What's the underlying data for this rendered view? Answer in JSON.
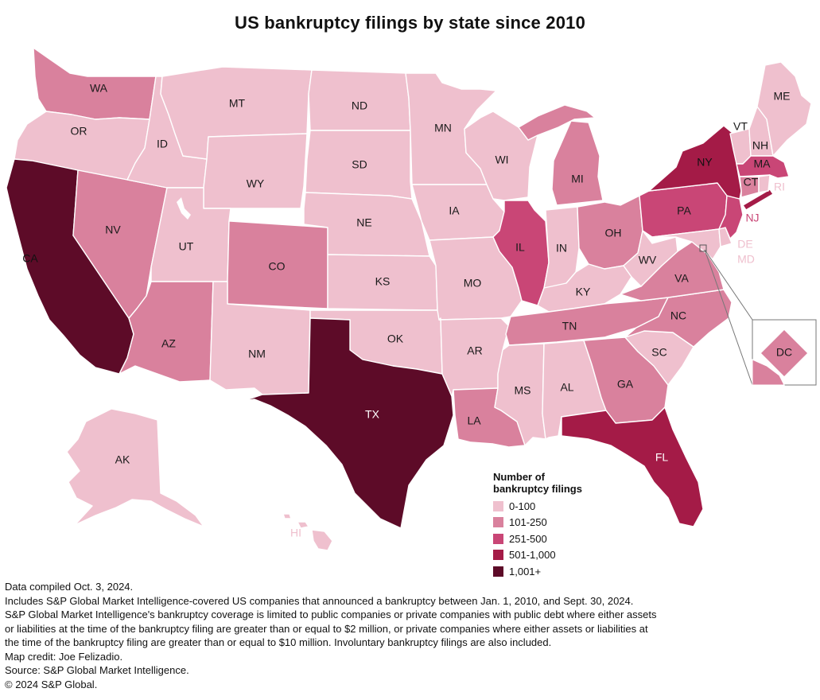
{
  "title": "US bankruptcy filings by state since 2010",
  "colors": {
    "bin1": "#efc0ce",
    "bin2": "#d9819d",
    "bin3": "#c94676",
    "bin4": "#a41b47",
    "bin5": "#5d0b28"
  },
  "legend": {
    "title_line1": "Number of",
    "title_line2": "bankruptcy filings",
    "items": [
      {
        "label": "0-100",
        "bin": "bin1"
      },
      {
        "label": "101-250",
        "bin": "bin2"
      },
      {
        "label": "251-500",
        "bin": "bin3"
      },
      {
        "label": "501-1,000",
        "bin": "bin4"
      },
      {
        "label": "1,001+",
        "bin": "bin5"
      }
    ]
  },
  "states": {
    "WA": {
      "label": "WA",
      "bin": "bin2"
    },
    "OR": {
      "label": "OR",
      "bin": "bin1"
    },
    "CA": {
      "label": "CA",
      "bin": "bin5"
    },
    "NV": {
      "label": "NV",
      "bin": "bin2"
    },
    "ID": {
      "label": "ID",
      "bin": "bin1"
    },
    "MT": {
      "label": "MT",
      "bin": "bin1"
    },
    "WY": {
      "label": "WY",
      "bin": "bin1"
    },
    "UT": {
      "label": "UT",
      "bin": "bin1"
    },
    "AZ": {
      "label": "AZ",
      "bin": "bin2"
    },
    "CO": {
      "label": "CO",
      "bin": "bin2"
    },
    "NM": {
      "label": "NM",
      "bin": "bin1"
    },
    "ND": {
      "label": "ND",
      "bin": "bin1"
    },
    "SD": {
      "label": "SD",
      "bin": "bin1"
    },
    "NE": {
      "label": "NE",
      "bin": "bin1"
    },
    "KS": {
      "label": "KS",
      "bin": "bin1"
    },
    "OK": {
      "label": "OK",
      "bin": "bin1"
    },
    "TX": {
      "label": "TX",
      "bin": "bin5"
    },
    "MN": {
      "label": "MN",
      "bin": "bin1"
    },
    "IA": {
      "label": "IA",
      "bin": "bin1"
    },
    "MO": {
      "label": "MO",
      "bin": "bin1"
    },
    "AR": {
      "label": "AR",
      "bin": "bin1"
    },
    "LA": {
      "label": "LA",
      "bin": "bin2"
    },
    "WI": {
      "label": "WI",
      "bin": "bin1"
    },
    "IL": {
      "label": "IL",
      "bin": "bin3"
    },
    "MI": {
      "label": "MI",
      "bin": "bin2"
    },
    "IN": {
      "label": "IN",
      "bin": "bin1"
    },
    "OH": {
      "label": "OH",
      "bin": "bin2"
    },
    "KY": {
      "label": "KY",
      "bin": "bin1"
    },
    "TN": {
      "label": "TN",
      "bin": "bin2"
    },
    "MS": {
      "label": "MS",
      "bin": "bin1"
    },
    "AL": {
      "label": "AL",
      "bin": "bin1"
    },
    "GA": {
      "label": "GA",
      "bin": "bin2"
    },
    "FL": {
      "label": "FL",
      "bin": "bin4"
    },
    "SC": {
      "label": "SC",
      "bin": "bin1"
    },
    "NC": {
      "label": "NC",
      "bin": "bin2"
    },
    "VA": {
      "label": "VA",
      "bin": "bin2"
    },
    "WV": {
      "label": "WV",
      "bin": "bin1"
    },
    "PA": {
      "label": "PA",
      "bin": "bin3"
    },
    "NY": {
      "label": "NY",
      "bin": "bin4"
    },
    "NJ": {
      "label": "NJ",
      "bin": "bin3"
    },
    "DE": {
      "label": "DE",
      "bin": "bin1"
    },
    "MD": {
      "label": "MD",
      "bin": "bin1"
    },
    "DC": {
      "label": "DC",
      "bin": "bin2"
    },
    "CT": {
      "label": "CT",
      "bin": "bin2"
    },
    "RI": {
      "label": "RI",
      "bin": "bin1"
    },
    "MA": {
      "label": "MA",
      "bin": "bin3"
    },
    "VT": {
      "label": "VT",
      "bin": "bin1"
    },
    "NH": {
      "label": "NH",
      "bin": "bin1"
    },
    "ME": {
      "label": "ME",
      "bin": "bin1"
    },
    "AK": {
      "label": "AK",
      "bin": "bin1"
    },
    "HI": {
      "label": "HI",
      "bin": "bin1"
    }
  },
  "notes": [
    "Data compiled Oct. 3, 2024.",
    "Includes S&P Global Market Intelligence-covered US companies that announced a bankruptcy between Jan. 1, 2010, and Sept. 30, 2024.",
    "S&P Global Market Intelligence's bankruptcy coverage is limited to public companies or private companies with public debt where either assets",
    "or liabilities at the time of the bankruptcy filing are greater than or equal to $2 million, or private companies where either assets or liabilities at",
    "the time of the bankruptcy filing are greater than or equal to $10 million. Involuntary bankruptcy filings are also included.",
    "Map credit: Joe Felizadio.",
    "Source: S&P Global Market Intelligence.",
    "© 2024 S&P Global."
  ]
}
